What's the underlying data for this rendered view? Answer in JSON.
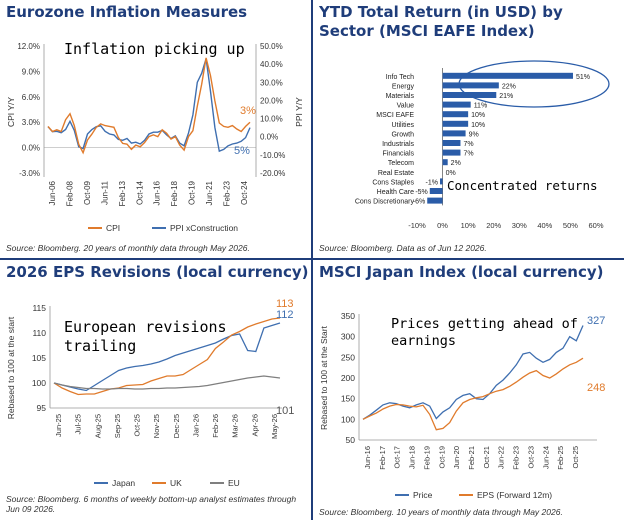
{
  "panels": [
    {
      "title": "Eurozone Inflation Measures",
      "annotation": "Inflation picking up",
      "source": "Source: Bloomberg. 20 years of monthly data through May 2026.",
      "chart_data": {
        "type": "line",
        "x_ticks": [
          "Jun-06",
          "Feb-08",
          "Oct-09",
          "Jun-11",
          "Feb-13",
          "Oct-14",
          "Jun-16",
          "Feb-18",
          "Oct-19",
          "Jun-21",
          "Feb-23",
          "Oct-24"
        ],
        "ylabel_left": "CPI Y/Y",
        "ylabel_right": "PPI Y/Y",
        "yticks_left": [
          "12.0%",
          "9.0%",
          "6.0%",
          "3.0%",
          "0.0%",
          "-3.0%"
        ],
        "yticks_right": [
          "50.0%",
          "40.0%",
          "30.0%",
          "20.0%",
          "10.0%",
          "0.0%",
          "-10.0%",
          "-20.0%"
        ],
        "ylim_left": [
          -3,
          12
        ],
        "ylim_right": [
          -20,
          50
        ],
        "end_labels": [
          "3%",
          "5%"
        ],
        "series": [
          {
            "name": "CPI",
            "axis": "left",
            "color": "#e07b2c",
            "values": [
              2.5,
              1.9,
              2.1,
              1.9,
              3.3,
              4.0,
              2.6,
              0.4,
              -0.6,
              0.9,
              1.6,
              2.4,
              2.8,
              2.6,
              2.5,
              2.4,
              1.2,
              0.5,
              0.4,
              -0.2,
              0.3,
              0.1,
              0.6,
              1.3,
              1.5,
              1.3,
              2.1,
              1.7,
              1.0,
              1.3,
              0.3,
              -0.3,
              1.3,
              2.0,
              4.9,
              7.5,
              10.6,
              8.5,
              5.5,
              2.9,
              2.5,
              2.4,
              2.6,
              2.2,
              1.9,
              2.5,
              3.0
            ]
          },
          {
            "name": "PPI xConstruction",
            "axis": "right",
            "color": "#3f6fb0",
            "values": [
              5.5,
              2.8,
              3.0,
              2.2,
              4.0,
              8.5,
              3.5,
              -5.5,
              -6.5,
              1.5,
              4.0,
              5.5,
              6.0,
              3.0,
              1.5,
              1.0,
              -1.5,
              -2.0,
              -1.0,
              -3.5,
              -3.0,
              -4.0,
              -2.0,
              1.5,
              2.5,
              2.5,
              3.5,
              1.0,
              -1.0,
              0.5,
              -3.5,
              -5.0,
              2.0,
              12.0,
              30.0,
              35.0,
              43.0,
              25.0,
              5.0,
              -8.0,
              -7.0,
              -5.0,
              -4.0,
              -3.5,
              -2.5,
              -0.5,
              5.0
            ]
          }
        ],
        "legend": [
          "CPI",
          "PPI xConstruction"
        ]
      }
    },
    {
      "title": "YTD Total Return (in USD) by Sector (MSCI EAFE Index)",
      "annotation": "Concentrated returns",
      "source": "Source: Bloomberg. Data as of Jun 12 2026.",
      "chart_data": {
        "type": "bar",
        "orientation": "horizontal",
        "color": "#2a5ca8",
        "categories": [
          "Info Tech",
          "Energy",
          "Materials",
          "Value",
          "MSCI EAFE",
          "Utilities",
          "Growth",
          "Industrials",
          "Financials",
          "Telecom",
          "Real Estate",
          "Cons Staples",
          "Health Care",
          "Cons Discretionary"
        ],
        "values": [
          51,
          22,
          21,
          11,
          10,
          10,
          9,
          7,
          7,
          2,
          0,
          -1,
          -5,
          -6
        ],
        "data_labels": [
          "51%",
          "22%",
          "21%",
          "11%",
          "10%",
          "10%",
          "9%",
          "7%",
          "7%",
          "2%",
          "0%",
          "-1%",
          "-5%",
          "-6%"
        ],
        "xticks": [
          "-10%",
          "0%",
          "10%",
          "20%",
          "30%",
          "40%",
          "50%",
          "60%"
        ],
        "xlim": [
          -10,
          60
        ]
      }
    },
    {
      "title": "2026 EPS Revisions (local currency)",
      "annotation": "European revisions trailing",
      "source": "Source: Bloomberg. 6 months of weekly bottom-up analyst estimates through Jun 09 2026.",
      "chart_data": {
        "type": "line",
        "x_ticks": [
          "Jun-25",
          "Jul-25",
          "Aug-25",
          "Sep-25",
          "Oct-25",
          "Nov-25",
          "Dec-25",
          "Jan-26",
          "Feb-26",
          "Mar-26",
          "Apr-26",
          "May-26"
        ],
        "ylabel": "Rebased to 100 at the start",
        "yticks": [
          "115",
          "110",
          "105",
          "100",
          "95"
        ],
        "ylim": [
          95,
          115
        ],
        "end_labels": [
          "113",
          "112",
          "101"
        ],
        "series": [
          {
            "name": "Japan",
            "color": "#3f6fb0",
            "values": [
              100,
              99.6,
              99.2,
              98.8,
              98.5,
              99.5,
              100.5,
              101.5,
              102.5,
              103.0,
              103.3,
              103.5,
              103.8,
              104.2,
              104.8,
              105.5,
              106.0,
              106.5,
              107.0,
              107.5,
              108.0,
              108.8,
              109.5,
              109.8,
              106.5,
              106.3,
              111.0,
              111.5,
              112.0
            ]
          },
          {
            "name": "UK",
            "color": "#e07b2c",
            "values": [
              100,
              99.0,
              98.3,
              97.7,
              97.8,
              97.8,
              98.3,
              98.8,
              99.0,
              99.5,
              99.6,
              99.7,
              100.4,
              100.9,
              101.4,
              101.4,
              101.7,
              102.7,
              103.7,
              104.7,
              106.9,
              108.2,
              109.6,
              110.3,
              111.2,
              111.8,
              112.3,
              112.8,
              113.0
            ]
          },
          {
            "name": "EU",
            "color": "#7f7f7f",
            "values": [
              100,
              99.6,
              99.3,
              99.1,
              98.9,
              98.9,
              98.8,
              98.8,
              98.9,
              98.9,
              98.8,
              98.8,
              98.9,
              98.9,
              99.0,
              99.0,
              99.1,
              99.2,
              99.3,
              99.5,
              99.8,
              100.1,
              100.4,
              100.7,
              101.0,
              101.2,
              101.4,
              101.2,
              101.0
            ]
          }
        ],
        "legend": [
          "Japan",
          "UK",
          "EU"
        ]
      }
    },
    {
      "title": "MSCI Japan Index (local currency)",
      "annotation": "Prices getting ahead of earnings",
      "source": "Source: Bloomberg. 10 years of monthly data through May 2026.",
      "chart_data": {
        "type": "line",
        "x_ticks": [
          "Jun-16",
          "Feb-17",
          "Oct-17",
          "Jun-18",
          "Feb-19",
          "Oct-19",
          "Jun-20",
          "Feb-21",
          "Oct-21",
          "Jun-22",
          "Feb-23",
          "Oct-23",
          "Jun-24",
          "Feb-25",
          "Oct-25"
        ],
        "ylabel": "Rebased to 100 at the Start",
        "yticks": [
          "350",
          "300",
          "250",
          "200",
          "150",
          "100",
          "50"
        ],
        "ylim": [
          50,
          350
        ],
        "end_labels": [
          "327",
          "248"
        ],
        "series": [
          {
            "name": "Price",
            "color": "#3f6fb0",
            "values": [
              100,
              110,
              122,
              135,
              140,
              138,
              132,
              128,
              135,
              140,
              132,
              102,
              118,
              128,
              148,
              158,
              162,
              150,
              148,
              162,
              182,
              195,
              212,
              232,
              258,
              262,
              248,
              238,
              245,
              262,
              272,
              300,
              290,
              327
            ]
          },
          {
            "name": "EPS (Forward 12m)",
            "color": "#e07b2c",
            "values": [
              100,
              108,
              115,
              125,
              132,
              136,
              135,
              132,
              130,
              134,
              112,
              75,
              78,
              92,
              120,
              140,
              148,
              152,
              155,
              162,
              168,
              172,
              180,
              190,
              202,
              212,
              218,
              206,
              200,
              210,
              222,
              232,
              238,
              248
            ]
          }
        ],
        "legend": [
          "Price",
          "EPS (Forward 12m)"
        ]
      }
    }
  ]
}
